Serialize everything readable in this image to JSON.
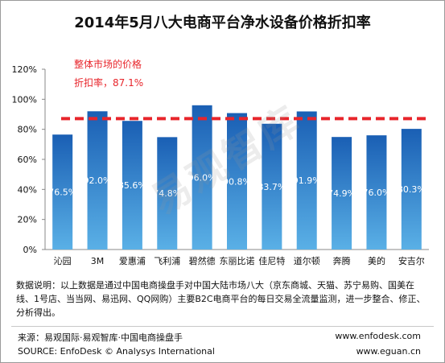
{
  "chart_data": {
    "type": "bar",
    "title": "2014年5月八大电商平台净水设备价格折扣率",
    "categories": [
      "沁园",
      "3M",
      "爱惠浦",
      "飞利浦",
      "碧然德",
      "东丽比诺",
      "佳尼特",
      "道尔顿",
      "奔腾",
      "美的",
      "安吉尔"
    ],
    "values": [
      76.5,
      92.0,
      85.6,
      74.8,
      96.0,
      90.8,
      83.7,
      91.9,
      74.9,
      76.0,
      80.3
    ],
    "data_labels": [
      "76.5%",
      "92.0%",
      "85.6%",
      "74.8%",
      "96.0%",
      "90.8%",
      "83.7%",
      "91.9%",
      "74.9%",
      "76.0%",
      "80.3%"
    ],
    "ylim": [
      0,
      120
    ],
    "yticks": [
      0,
      20,
      40,
      60,
      80,
      100,
      120
    ],
    "ytick_labels": [
      "0%",
      "20%",
      "40%",
      "60%",
      "80%",
      "100%",
      "120%"
    ],
    "reference_line": {
      "value": 87.1,
      "label_line1": "整体市场的价格",
      "label_line2": "折扣率，87.1%",
      "color": "#e8252b"
    },
    "bar_color_top": "#1a5fb4",
    "bar_color_bottom": "#5ab0e6",
    "grid": false
  },
  "watermark": "易观智库",
  "note": "数据说明：以上数据是通过中国电商操盘手对中国大陆市场八大（京东商城、天猫、苏宁易购、国美在线、1号店、当当网、易迅网、QQ网购）主要B2C电商平台的每日交易全流量监测，进一步整合、修正、分析得出。",
  "footer": {
    "source_cn": "来源：易观国际·易观智库·中国电商操盘手",
    "source_en": "SOURCE: EnfoDesk © Analysys International",
    "site1": "www.enfodesk.com",
    "site2": "www.eguan.cn"
  }
}
